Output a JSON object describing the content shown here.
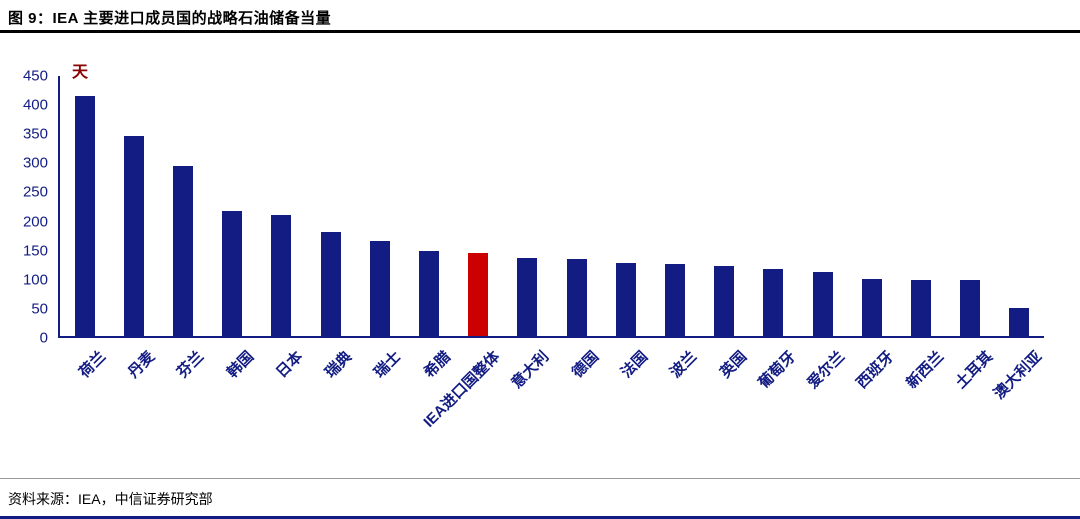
{
  "header": {
    "title": "图 9：IEA 主要进口成员国的战略石油储备当量"
  },
  "footer": {
    "source": "资料来源：IEA，中信证券研究部"
  },
  "colors": {
    "bar": "#121C82",
    "highlight_bar": "#CC0000",
    "axis_text": "#121C82",
    "unit_label": "#8B0000"
  },
  "chart_data": {
    "type": "bar",
    "title": "IEA 主要进口成员国的战略石油储备当量",
    "unit_label": "天",
    "categories": [
      "荷兰",
      "丹麦",
      "芬兰",
      "韩国",
      "日本",
      "瑞典",
      "瑞士",
      "希腊",
      "IEA进口国整体",
      "意大利",
      "德国",
      "法国",
      "波兰",
      "英国",
      "葡萄牙",
      "爱尔兰",
      "西班牙",
      "新西兰",
      "土耳其",
      "澳大利亚"
    ],
    "values": [
      415,
      347,
      295,
      216,
      209,
      180,
      164,
      147,
      143,
      135,
      133,
      126,
      124,
      122,
      116,
      110,
      99,
      97,
      97,
      49
    ],
    "highlight_category": "IEA进口国整体",
    "highlight_index": 8,
    "xlabel": "",
    "ylabel": "天",
    "ylim": [
      0,
      450
    ],
    "yticks": [
      0,
      50,
      100,
      150,
      200,
      250,
      300,
      350,
      400,
      450
    ],
    "grid": false,
    "legend": "none"
  }
}
